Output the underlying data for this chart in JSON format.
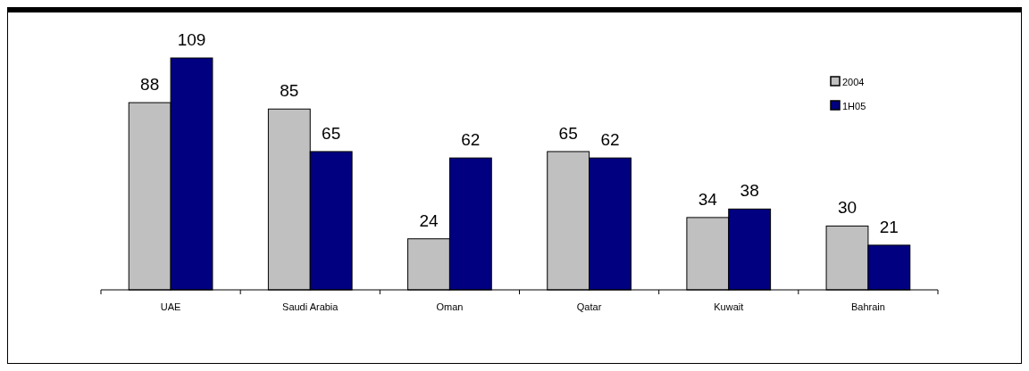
{
  "chart_data": {
    "type": "bar",
    "categories": [
      "UAE",
      "Saudi Arabia",
      "Oman",
      "Qatar",
      "Kuwait",
      "Bahrain"
    ],
    "series": [
      {
        "name": "2004",
        "color": "#c0c0c0",
        "values": [
          88,
          85,
          24,
          65,
          34,
          30
        ]
      },
      {
        "name": "1H05",
        "color": "#000080",
        "values": [
          109,
          65,
          62,
          62,
          38,
          21
        ]
      }
    ],
    "data_labels": true,
    "legend": "top right"
  }
}
